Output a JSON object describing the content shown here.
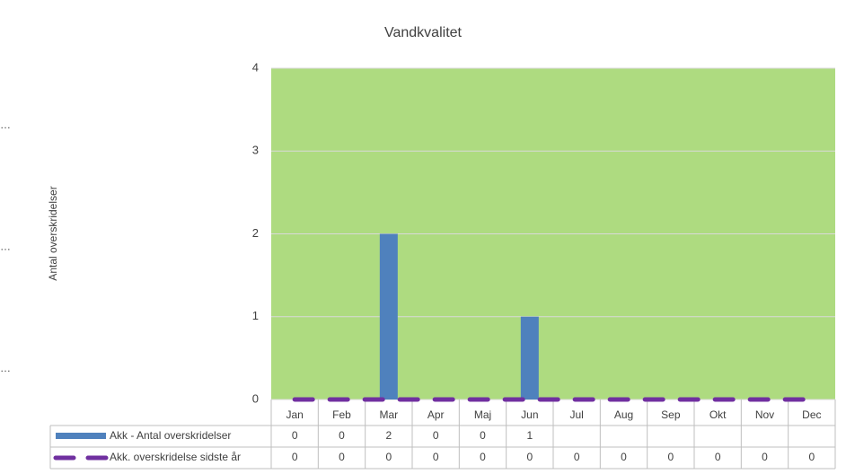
{
  "chart_data": {
    "type": "bar",
    "title": "Vandkvalitet",
    "ylabel": "Antal overskridelser",
    "left_labels": [
      "…",
      "…",
      "…"
    ],
    "categories": [
      "Jan",
      "Feb",
      "Mar",
      "Apr",
      "Maj",
      "Jun",
      "Jul",
      "Aug",
      "Sep",
      "Okt",
      "Nov",
      "Dec"
    ],
    "series": [
      {
        "name": "Akk - Antal overskridelser",
        "type": "bar",
        "color": "#4f81bd",
        "values": [
          0,
          0,
          2,
          0,
          0,
          1,
          null,
          null,
          null,
          null,
          null,
          null
        ]
      },
      {
        "name": "Akk. overskridelse sidste år",
        "type": "line",
        "color": "#7030a0",
        "values": [
          0,
          0,
          0,
          0,
          0,
          0,
          0,
          0,
          0,
          0,
          0,
          0
        ]
      }
    ],
    "ylim": [
      0,
      4
    ],
    "yticks": [
      0,
      1,
      2,
      3,
      4
    ],
    "grid": true,
    "plot_color": "#aedb80",
    "data_table": true
  }
}
